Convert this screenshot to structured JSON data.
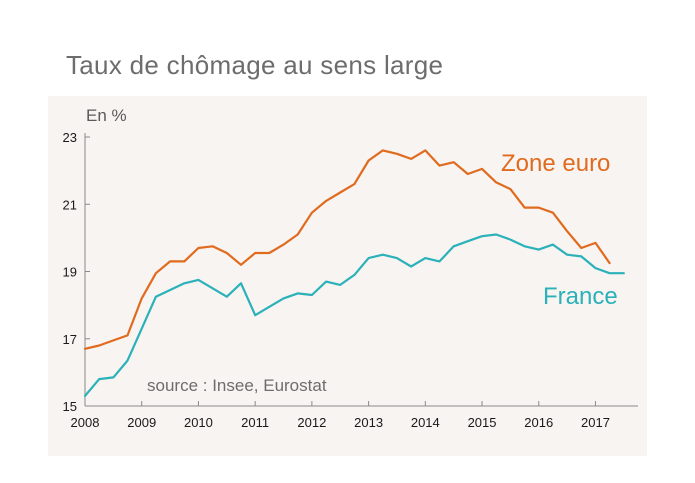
{
  "page": {
    "title": "Taux de chômage au sens large"
  },
  "chart_data": {
    "type": "line",
    "title": "Taux de chômage au sens large",
    "ylabel": "En %",
    "xlabel": "",
    "source": "source : Insee, Eurostat",
    "xlim": [
      2008,
      2017.75
    ],
    "ylim": [
      15,
      23
    ],
    "yticks": [
      15,
      17,
      19,
      21,
      23
    ],
    "xticks": [
      2008,
      2009,
      2010,
      2011,
      2012,
      2013,
      2014,
      2015,
      2016,
      2017
    ],
    "grid": false,
    "series": [
      {
        "name": "Zone euro",
        "color": "#e06b1f",
        "x": [
          2008.0,
          2008.25,
          2008.5,
          2008.75,
          2009.0,
          2009.25,
          2009.5,
          2009.75,
          2010.0,
          2010.25,
          2010.5,
          2010.75,
          2011.0,
          2011.25,
          2011.5,
          2011.75,
          2012.0,
          2012.25,
          2012.5,
          2012.75,
          2013.0,
          2013.25,
          2013.5,
          2013.75,
          2014.0,
          2014.25,
          2014.5,
          2014.75,
          2015.0,
          2015.25,
          2015.5,
          2015.75,
          2016.0,
          2016.25,
          2016.5,
          2016.75,
          2017.0,
          2017.25
        ],
        "values": [
          16.7,
          16.8,
          16.95,
          17.1,
          18.2,
          18.95,
          19.3,
          19.3,
          19.7,
          19.75,
          19.55,
          19.2,
          19.55,
          19.55,
          19.8,
          20.1,
          20.75,
          21.1,
          21.35,
          21.6,
          22.3,
          22.6,
          22.5,
          22.35,
          22.6,
          22.15,
          22.25,
          21.9,
          22.05,
          21.65,
          21.45,
          20.9,
          20.9,
          20.75,
          20.2,
          19.7,
          19.85,
          19.25
        ]
      },
      {
        "name": "France",
        "color": "#2bb1b9",
        "x": [
          2008.0,
          2008.25,
          2008.5,
          2008.75,
          2009.0,
          2009.25,
          2009.5,
          2009.75,
          2010.0,
          2010.25,
          2010.5,
          2010.75,
          2011.0,
          2011.25,
          2011.5,
          2011.75,
          2012.0,
          2012.25,
          2012.5,
          2012.75,
          2013.0,
          2013.25,
          2013.5,
          2013.75,
          2014.0,
          2014.25,
          2014.5,
          2014.75,
          2015.0,
          2015.25,
          2015.5,
          2015.75,
          2016.0,
          2016.25,
          2016.5,
          2016.75,
          2017.0,
          2017.25,
          2017.5
        ],
        "values": [
          15.3,
          15.8,
          15.85,
          16.35,
          17.3,
          18.25,
          18.45,
          18.65,
          18.75,
          18.5,
          18.25,
          18.65,
          17.7,
          17.95,
          18.2,
          18.35,
          18.3,
          18.7,
          18.6,
          18.9,
          19.4,
          19.5,
          19.4,
          19.15,
          19.4,
          19.3,
          19.75,
          19.9,
          20.05,
          20.1,
          19.95,
          19.75,
          19.65,
          19.8,
          19.5,
          19.45,
          19.1,
          18.95,
          18.95
        ]
      }
    ]
  }
}
